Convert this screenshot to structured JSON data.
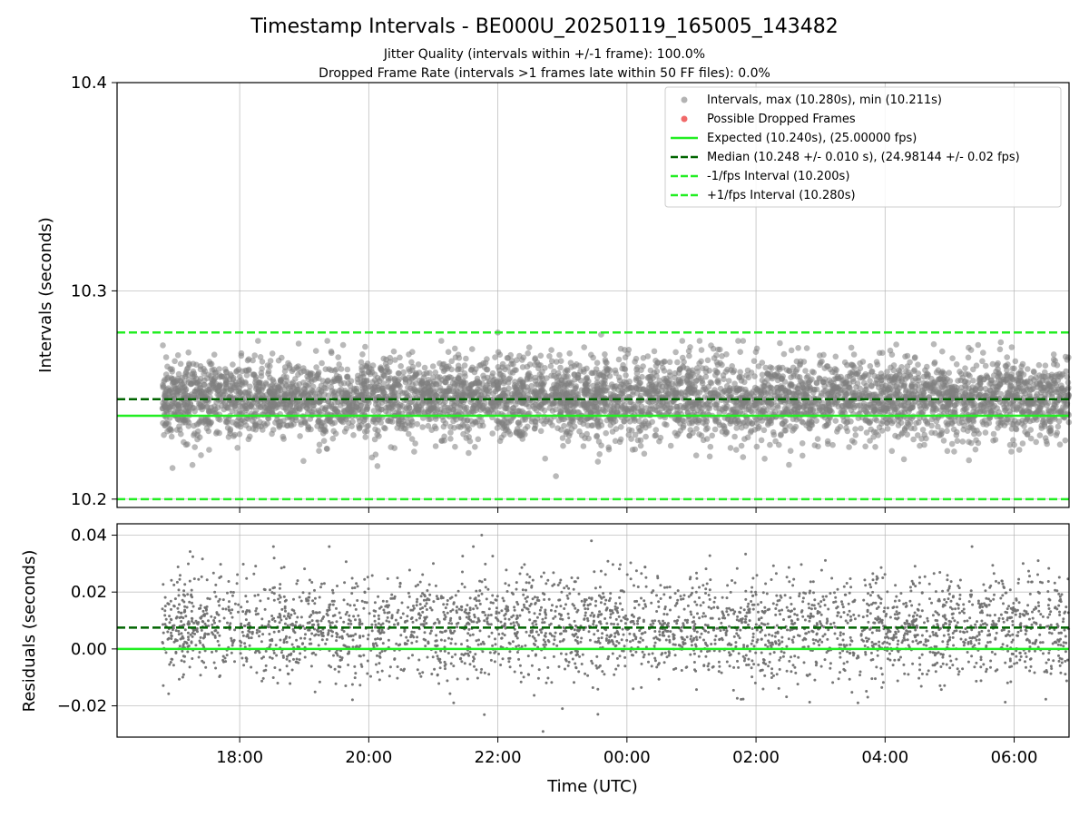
{
  "chart_data": [
    {
      "type": "scatter",
      "panel": "intervals",
      "title": "Timestamp Intervals - BE000U_20250119_165005_143482",
      "subtitle_lines": [
        "Jitter Quality (intervals within +/-1 frame): 100.0%",
        "Dropped Frame Rate (intervals >1 frames late within 50 FF files): 0.0%"
      ],
      "xlabel": "",
      "ylabel": "Intervals (seconds)",
      "x_unit": "hours since 00:00 UTC (negative = previous day)",
      "xlim": [
        -7.9,
        6.85
      ],
      "ylim": [
        10.196,
        10.4
      ],
      "yticks": [
        "10.2",
        "10.3",
        "10.4"
      ],
      "ytick_values": [
        10.2,
        10.3,
        10.4
      ],
      "grid": true,
      "legend_position": "top-right",
      "legend": [
        {
          "label": "Intervals, max (10.280s), min (10.211s)",
          "kind": "dot",
          "color": "#808080"
        },
        {
          "label": "Possible Dropped Frames",
          "kind": "dot",
          "color": "#ee4444"
        },
        {
          "label": "Expected (10.240s), (25.00000 fps)",
          "kind": "solid",
          "color": "#22ee22"
        },
        {
          "label": "Median (10.248 +/- 0.010 s), (24.98144 +/- 0.02 fps)",
          "kind": "dashed",
          "color": "#006400"
        },
        {
          "label": "-1/fps Interval (10.200s)",
          "kind": "dashed",
          "color": "#22ee22"
        },
        {
          "label": "+1/fps Interval (10.280s)",
          "kind": "dashed",
          "color": "#22ee22"
        }
      ],
      "reference_lines": [
        {
          "name": "Expected",
          "y": 10.24,
          "style": "solid",
          "color": "#22ee22"
        },
        {
          "name": "Median",
          "y": 10.248,
          "style": "dashed",
          "color": "#006400"
        },
        {
          "name": "-1/fps Interval",
          "y": 10.2,
          "style": "dashed",
          "color": "#22ee22"
        },
        {
          "name": "+1/fps Interval",
          "y": 10.28,
          "style": "dashed",
          "color": "#22ee22"
        }
      ],
      "series": [
        {
          "name": "Intervals",
          "color": "#808080",
          "x_range": [
            -7.2,
            6.85
          ],
          "approx_count": 5000,
          "center": 10.248,
          "spread_sd": 0.01,
          "max": 10.28,
          "min": 10.211,
          "notable_points": [
            {
              "x": -2.0,
              "y": 10.28
            },
            {
              "x": -0.4,
              "y": 10.279
            },
            {
              "x": -1.1,
              "y": 10.211
            },
            {
              "x": -0.45,
              "y": 10.218
            },
            {
              "x": -3.95,
              "y": 10.22
            }
          ]
        }
      ]
    },
    {
      "type": "scatter",
      "panel": "residuals",
      "xlabel": "Time (UTC)",
      "ylabel": "Residuals (seconds)",
      "xlim": [
        -7.9,
        6.85
      ],
      "ylim": [
        -0.031,
        0.044
      ],
      "xticks": [
        "18:00",
        "20:00",
        "22:00",
        "00:00",
        "02:00",
        "04:00",
        "06:00"
      ],
      "xtick_values": [
        -6,
        -4,
        -2,
        0,
        2,
        4,
        6
      ],
      "yticks": [
        "−0.02",
        "0.00",
        "0.02",
        "0.04"
      ],
      "ytick_values": [
        -0.02,
        0.0,
        0.02,
        0.04
      ],
      "grid": true,
      "reference_lines": [
        {
          "name": "Expected",
          "y": 0.0,
          "style": "solid",
          "color": "#22ee22"
        },
        {
          "name": "Median",
          "y": 0.0075,
          "style": "dashed",
          "color": "#006400"
        }
      ],
      "series": [
        {
          "name": "Residuals",
          "color": "#707070",
          "x_range": [
            -7.2,
            6.85
          ],
          "approx_count": 3200,
          "center": 0.0075,
          "spread_sd": 0.01,
          "max": 0.04,
          "min": -0.029,
          "notable_points": [
            {
              "x": -2.25,
              "y": 0.04
            },
            {
              "x": -0.55,
              "y": 0.038
            },
            {
              "x": -1.3,
              "y": -0.029
            },
            {
              "x": -0.45,
              "y": -0.023
            },
            {
              "x": -1.0,
              "y": -0.021
            }
          ]
        }
      ]
    }
  ]
}
